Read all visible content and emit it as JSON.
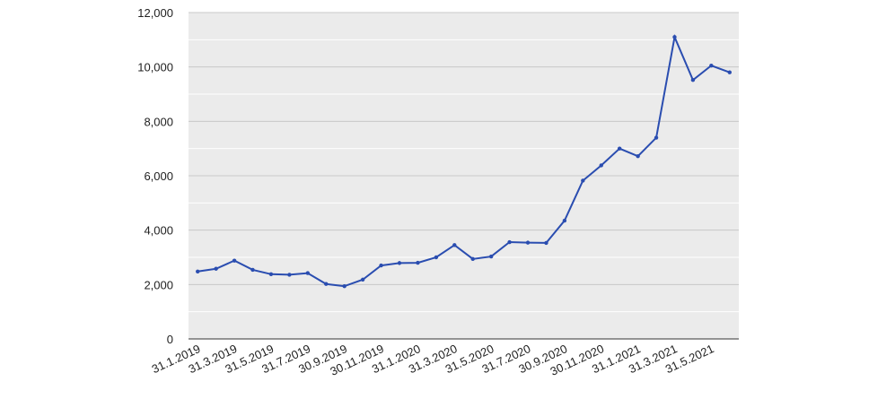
{
  "chart_data": {
    "type": "line",
    "categories": [
      "31.1.2019",
      null,
      "31.3.2019",
      null,
      "31.5.2019",
      null,
      "31.7.2019",
      null,
      "30.9.2019",
      null,
      "30.11.2019",
      null,
      "31.1.2020",
      null,
      "31.3.2020",
      null,
      "31.5.2020",
      null,
      "31.7.2020",
      null,
      "30.9.2020",
      null,
      "30.11.2020",
      null,
      "31.1.2021",
      null,
      "31.3.2021",
      null,
      "31.5.2021",
      null
    ],
    "series": [
      {
        "color": "#2a4db0",
        "values": [
          2480,
          2580,
          2880,
          2540,
          2380,
          2360,
          2420,
          2020,
          1940,
          2180,
          2700,
          2790,
          2800,
          3000,
          3450,
          2940,
          3030,
          3560,
          3540,
          3530,
          4350,
          5820,
          6380,
          7000,
          6720,
          7400,
          11100,
          9520,
          10050,
          9800
        ]
      }
    ],
    "ylim": [
      0,
      12000
    ],
    "yticks": [
      0,
      {
        "value": 2000,
        "label": "2,000"
      },
      {
        "value": 4000,
        "label": "4,000"
      },
      {
        "value": 6000,
        "label": "6,000"
      },
      {
        "value": 8000,
        "label": "8,000"
      },
      {
        "value": 10000,
        "label": "10,000"
      },
      {
        "value": 12000,
        "label": "12,000"
      }
    ],
    "minor_yticks": [
      1000,
      3000,
      5000,
      7000,
      9000,
      11000
    ],
    "grid": true,
    "background": "#ebebeb"
  }
}
